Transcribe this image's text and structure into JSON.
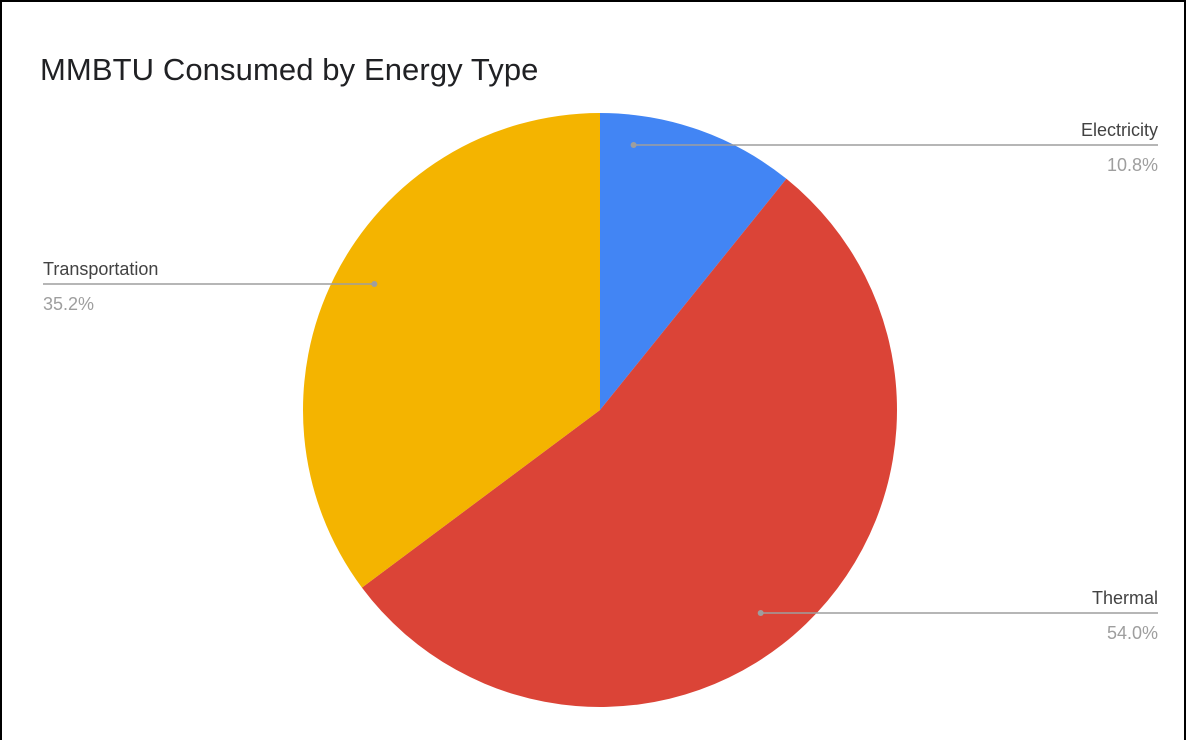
{
  "chart_data": {
    "type": "pie",
    "title": "MMBTU Consumed by Energy Type",
    "slices": [
      {
        "label": "Electricity",
        "value": 10.8,
        "pct_label": "10.8%",
        "color": "#4285f4"
      },
      {
        "label": "Thermal",
        "value": 54.0,
        "pct_label": "54.0%",
        "color": "#db4437"
      },
      {
        "label": "Transportation",
        "value": 35.2,
        "pct_label": "35.2%",
        "color": "#f4b400"
      }
    ],
    "legend": "labels-with-leader-lines"
  }
}
